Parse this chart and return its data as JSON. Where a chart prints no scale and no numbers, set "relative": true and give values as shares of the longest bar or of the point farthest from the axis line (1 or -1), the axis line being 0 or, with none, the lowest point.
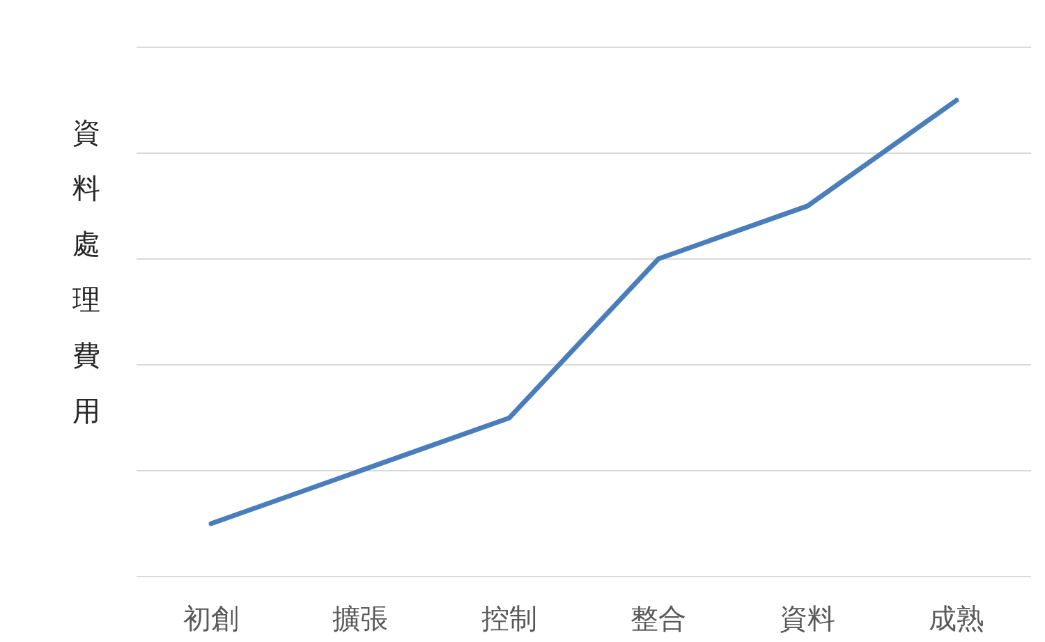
{
  "chart_data": {
    "type": "line",
    "relative": true,
    "ylabel": "資料處理費用",
    "categories": [
      "初創",
      "擴張",
      "控制",
      "整合",
      "資料",
      "成熟"
    ],
    "grid": "y",
    "series": [
      {
        "color": "#4a7ebb",
        "values": [
          0.111,
          0.222,
          0.333,
          0.667,
          0.778,
          1
        ]
      }
    ]
  }
}
